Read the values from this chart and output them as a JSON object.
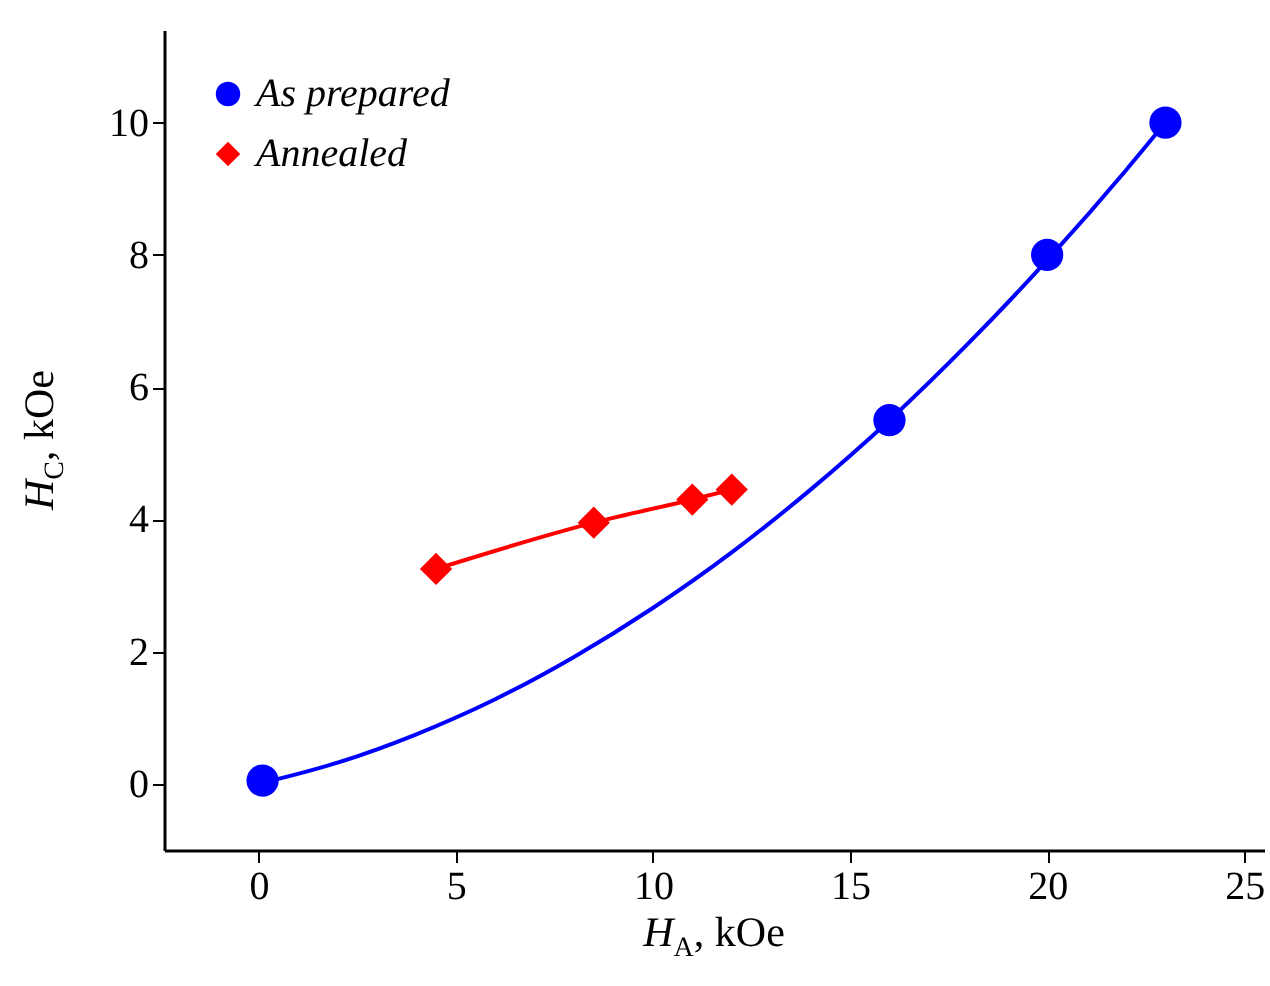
{
  "chart_data": {
    "type": "line",
    "xlabel": "H$_{A}$, kOe",
    "ylabel": "H$_{C}$, kOe",
    "xlim": [
      -2.4,
      25.5
    ],
    "xticks": [
      0,
      5,
      10,
      15,
      20,
      25
    ],
    "ylim": [
      -1,
      11.4
    ],
    "yticks": [
      0,
      2,
      4,
      6,
      8,
      10
    ],
    "grid": false,
    "legend": "top left",
    "series": [
      {
        "name": "As prepared",
        "type": "scatter",
        "color": "#0000ff",
        "marker": "circle",
        "x": [
          0.1,
          16,
          20,
          23
        ],
        "values": [
          0.05,
          5.5,
          8,
          10
        ]
      },
      {
        "type": "line",
        "color": "#0000ff",
        "marker": "none",
        "x": [
          0,
          2,
          4,
          6,
          8,
          10,
          12,
          14,
          16,
          18,
          20,
          22,
          23
        ],
        "values": [
          0,
          0.32,
          0.75,
          1.28,
          1.92,
          2.66,
          3.5,
          4.45,
          5.5,
          6.66,
          7.92,
          9.28,
          10
        ]
      },
      {
        "name": "Annealed",
        "type": "line",
        "color": "#ff0000",
        "marker": "diamond",
        "x": [
          4.5,
          8.5,
          11,
          12
        ],
        "values": [
          3.25,
          3.95,
          4.3,
          4.45
        ]
      }
    ]
  }
}
